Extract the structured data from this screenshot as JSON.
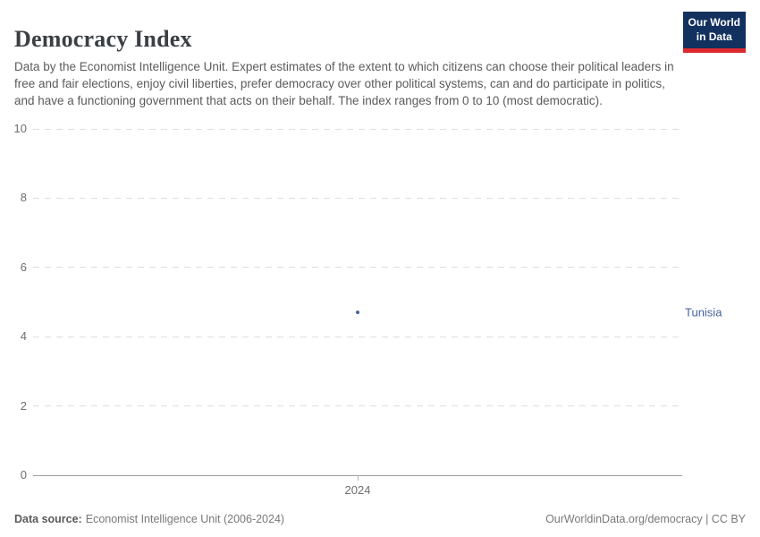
{
  "header": {
    "title": "Democracy Index",
    "subtitle": "Data by the Economist Intelligence Unit. Expert estimates of the extent to which citizens can choose their political leaders in free and fair elections, enjoy civil liberties, prefer democracy over other political systems, can and do participate in politics, and have a functioning government that acts on their behalf. The index ranges from 0 to 10 (most democratic).",
    "logo": {
      "line1": "Our World",
      "line2": "in Data",
      "bg_color": "#12315f",
      "accent_color": "#dc2a2f"
    }
  },
  "chart_data": {
    "type": "scatter",
    "title": "Democracy Index",
    "x": [
      2024
    ],
    "xtick_labels": [
      "2024"
    ],
    "series": [
      {
        "name": "Tunisia",
        "values": [
          4.7
        ],
        "color": "#44639f"
      }
    ],
    "xlabel": "",
    "ylabel": "",
    "ylim": [
      0,
      10
    ],
    "yticks": [
      0,
      2,
      4,
      6,
      8,
      10
    ],
    "grid": "dashed-horizontal-gridlines",
    "legend_position": "right-entity-label",
    "entity_label_color": "#44639f",
    "gridline_color": "#dedede",
    "axis_color": "#9c9c9c"
  },
  "footer": {
    "datasource_label": "Data source:",
    "datasource_value": "Economist Intelligence Unit (2006-2024)",
    "credit": "OurWorldinData.org/democracy | CC BY"
  }
}
